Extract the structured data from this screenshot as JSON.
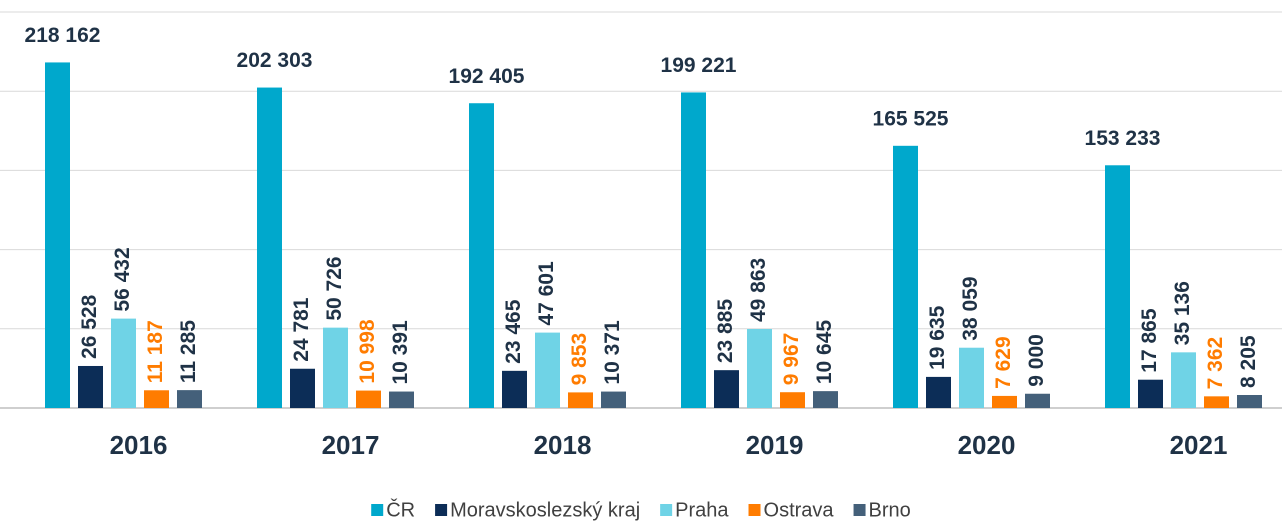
{
  "chart_data": {
    "type": "bar",
    "categories": [
      "2016",
      "2017",
      "2018",
      "2019",
      "2020",
      "2021"
    ],
    "series": [
      {
        "name": "ČR",
        "color": "#00a8cc",
        "label_color": "#1f3246",
        "values": [
          218162,
          202303,
          192405,
          199221,
          165525,
          153233
        ],
        "value_labels": [
          "218 162",
          "202 303",
          "192 405",
          "199 221",
          "165 525",
          "153 233"
        ]
      },
      {
        "name": "Moravskoslezský kraj",
        "color": "#0c2d57",
        "label_color": "#1f3246",
        "values": [
          26528,
          24781,
          23465,
          23885,
          19635,
          17865
        ],
        "value_labels": [
          "26 528",
          "24 781",
          "23 465",
          "23 885",
          "19 635",
          "17 865"
        ]
      },
      {
        "name": "Praha",
        "color": "#6fd3e6",
        "label_color": "#1f3246",
        "values": [
          56432,
          50726,
          47601,
          49863,
          38059,
          35136
        ],
        "value_labels": [
          "56 432",
          "50 726",
          "47 601",
          "49 863",
          "38 059",
          "35 136"
        ]
      },
      {
        "name": "Ostrava",
        "color": "#ff7c00",
        "label_color": "#ff7c00",
        "values": [
          11187,
          10998,
          9853,
          9967,
          7629,
          7362
        ],
        "value_labels": [
          "11 187",
          "10 998",
          "9 853",
          "9 967",
          "7 629",
          "7 362"
        ]
      },
      {
        "name": "Brno",
        "color": "#44607a",
        "label_color": "#1f3246",
        "values": [
          11285,
          10391,
          10371,
          10645,
          9000,
          8205
        ],
        "value_labels": [
          "11 285",
          "10 391",
          "10 371",
          "10 645",
          "9 000",
          "8 205"
        ]
      }
    ],
    "ylim": [
      0,
      250000
    ],
    "yticks": [
      0,
      50000,
      100000,
      150000,
      200000,
      250000
    ],
    "grid": true,
    "legend": "bottom"
  }
}
